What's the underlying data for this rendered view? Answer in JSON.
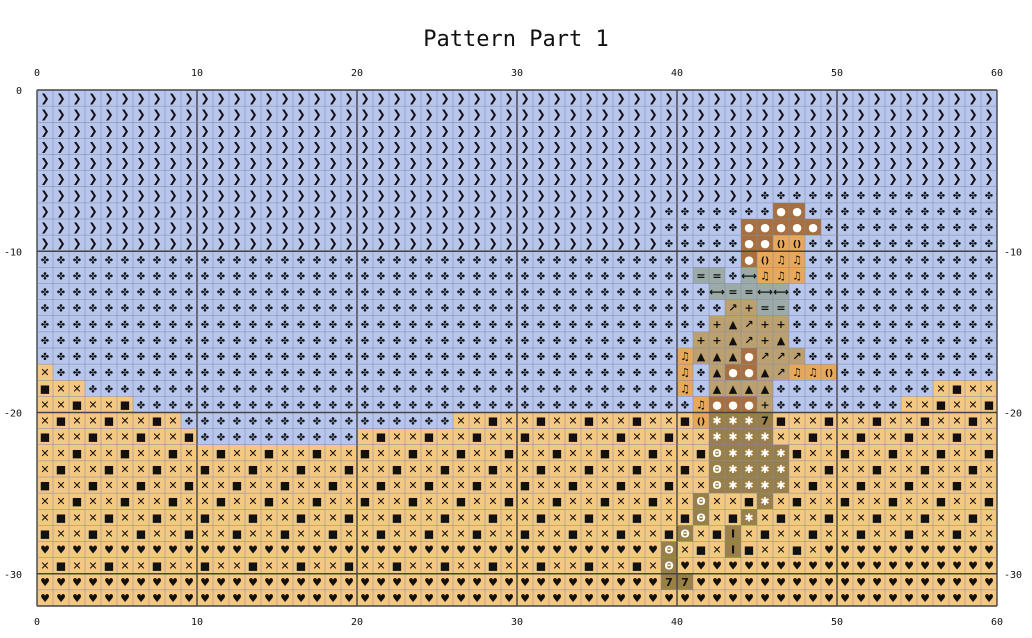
{
  "title": "Pattern Part 1",
  "grid": {
    "cols": 60,
    "rows": 32,
    "top_ticks": [
      "0",
      "10",
      "20",
      "30",
      "40",
      "50",
      "60"
    ],
    "bottom_ticks": [
      "0",
      "10",
      "20",
      "30",
      "40",
      "50",
      "60"
    ],
    "left_ticks": [
      "0",
      "-10",
      "-20",
      "-30"
    ],
    "right_ticks": [
      "-10",
      "-20",
      "-30"
    ]
  },
  "colors": {
    "sky": "#b8c6ee",
    "sand": "#f5c882",
    "brown": "#a8703e",
    "tan": "#bca070",
    "olive": "#9a8048",
    "grey": "#9caaa8",
    "orange": "#e8a85a",
    "gridline": "#7c88a8",
    "majorline": "#444444"
  },
  "legend": [
    {
      "id": "sky-arrow",
      "symbol": "❯",
      "color": "sky"
    },
    {
      "id": "sky-dots",
      "symbol": "✤",
      "color": "sky"
    },
    {
      "id": "sand-cross",
      "symbol": "✕",
      "color": "sand"
    },
    {
      "id": "sand-square",
      "symbol": "■",
      "color": "sand"
    },
    {
      "id": "sand-heart",
      "symbol": "♥",
      "color": "sand"
    },
    {
      "id": "brown-circle",
      "symbol": "●",
      "color": "brown"
    },
    {
      "id": "orange-bracket",
      "symbol": "()",
      "color": "orange"
    },
    {
      "id": "orange-note",
      "symbol": "♫",
      "color": "orange"
    },
    {
      "id": "grey-equal",
      "symbol": "=",
      "color": "grey"
    },
    {
      "id": "grey-link",
      "symbol": "⟷",
      "color": "grey"
    },
    {
      "id": "tan-arrow",
      "symbol": "↗",
      "color": "tan"
    },
    {
      "id": "tan-plus",
      "symbol": "+",
      "color": "tan"
    },
    {
      "id": "tan-mound",
      "symbol": "▲",
      "color": "tan"
    },
    {
      "id": "olive-star",
      "symbol": "✱",
      "color": "olive"
    },
    {
      "id": "olive-theta",
      "symbol": "Θ",
      "color": "olive"
    },
    {
      "id": "olive-seven",
      "symbol": "7",
      "color": "olive"
    },
    {
      "id": "olive-bar",
      "symbol": "I",
      "color": "olive"
    }
  ]
}
